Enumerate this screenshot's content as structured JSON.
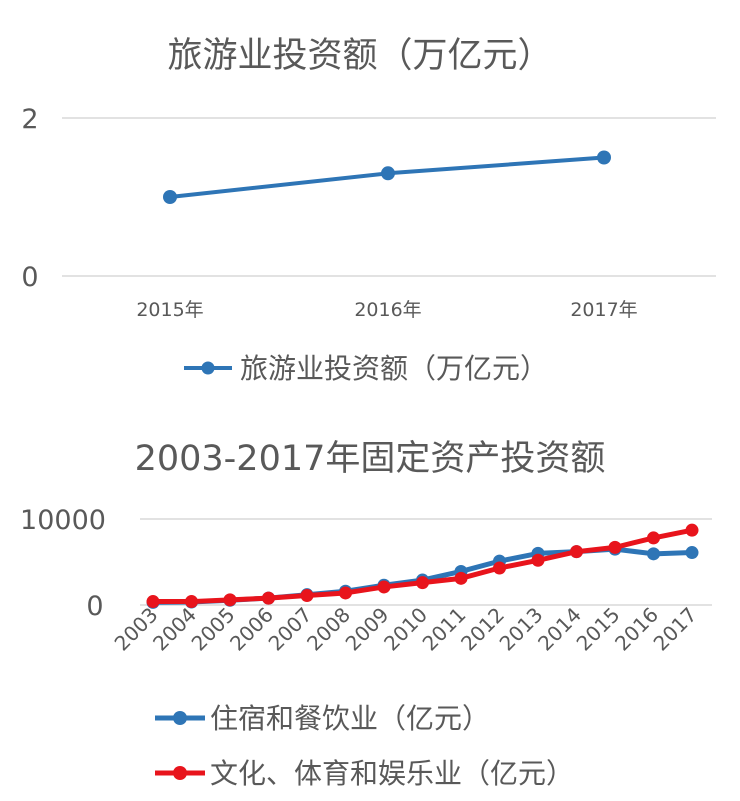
{
  "chart_data": [
    {
      "type": "line",
      "title": "旅游业投资额（万亿元）",
      "categories": [
        "2015年",
        "2016年",
        "2017年"
      ],
      "series": [
        {
          "name": "旅游业投资额（万亿元）",
          "values": [
            1.0,
            1.3,
            1.5
          ],
          "color": "#2e75b6"
        }
      ],
      "yticks": [
        "2",
        "0"
      ],
      "ylim": [
        0,
        2
      ],
      "grid": true,
      "legend": "bottom"
    },
    {
      "type": "line",
      "title": "2003-2017年固定资产投资额",
      "categories": [
        "2003",
        "2004",
        "2005",
        "2006",
        "2007",
        "2008",
        "2009",
        "2010",
        "2011",
        "2012",
        "2013",
        "2014",
        "2015",
        "2016",
        "2017"
      ],
      "series": [
        {
          "name": "住宿和餐饮业（亿元）",
          "values": [
            300,
            350,
            550,
            800,
            1200,
            1600,
            2300,
            2900,
            3900,
            5100,
            6000,
            6200,
            6500,
            5950,
            6100
          ],
          "color": "#2e75b6"
        },
        {
          "name": "文化、体育和娱乐业（亿元）",
          "values": [
            400,
            400,
            600,
            800,
            1100,
            1400,
            2100,
            2600,
            3100,
            4300,
            5200,
            6200,
            6700,
            7800,
            8700
          ],
          "color": "#e8141c"
        }
      ],
      "yticks": [
        "10000",
        "0"
      ],
      "ylim": [
        0,
        10000
      ],
      "grid": true,
      "legend": "bottom"
    }
  ]
}
